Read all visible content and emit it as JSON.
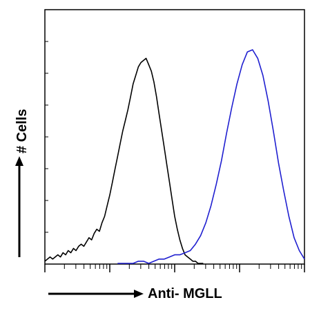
{
  "chart_data": {
    "type": "line",
    "title": "",
    "xlabel": "Anti- MGLL",
    "ylabel": "# Cells",
    "x_scale": "log",
    "xlim": [
      0,
      100
    ],
    "ylim": [
      0,
      100
    ],
    "grid": false,
    "legend": "none",
    "series": [
      {
        "color": "#000000",
        "x": [
          0,
          1,
          2,
          3,
          4,
          5,
          6,
          7,
          8,
          9,
          10,
          11,
          12,
          13,
          14,
          15,
          16,
          17,
          18,
          19,
          20,
          21,
          22,
          23,
          24,
          25,
          26,
          27,
          28,
          29,
          30,
          31,
          32,
          33,
          34,
          35,
          36,
          37,
          38,
          39,
          40,
          41,
          42,
          43,
          44,
          45,
          46,
          47,
          48,
          49,
          50,
          51,
          52,
          53,
          54,
          55,
          56,
          57,
          58,
          59,
          60,
          61
        ],
        "y": [
          1,
          2,
          3,
          2,
          3,
          4,
          3,
          5,
          4,
          6,
          5,
          7,
          6,
          8,
          9,
          8,
          10,
          12,
          11,
          14,
          16,
          15,
          19,
          22,
          27,
          32,
          38,
          44,
          50,
          56,
          62,
          67,
          72,
          78,
          84,
          88,
          92,
          94,
          95,
          96,
          93,
          90,
          85,
          78,
          70,
          62,
          54,
          46,
          38,
          30,
          22,
          16,
          11,
          7,
          4,
          3,
          2,
          1,
          1,
          0,
          0,
          0
        ]
      },
      {
        "color": "#1f1fd0",
        "x": [
          28,
          30,
          32,
          34,
          36,
          38,
          40,
          42,
          44,
          46,
          48,
          50,
          52,
          54,
          56,
          58,
          60,
          62,
          64,
          66,
          68,
          70,
          72,
          74,
          76,
          78,
          80,
          82,
          84,
          86,
          88,
          90,
          92,
          94,
          96,
          98,
          100
        ],
        "y": [
          0,
          0,
          0,
          0,
          1,
          1,
          0,
          1,
          2,
          2,
          3,
          4,
          4,
          5,
          6,
          9,
          13,
          19,
          27,
          37,
          48,
          61,
          73,
          84,
          93,
          99,
          100,
          96,
          88,
          76,
          62,
          47,
          34,
          22,
          12,
          6,
          2
        ]
      }
    ]
  }
}
